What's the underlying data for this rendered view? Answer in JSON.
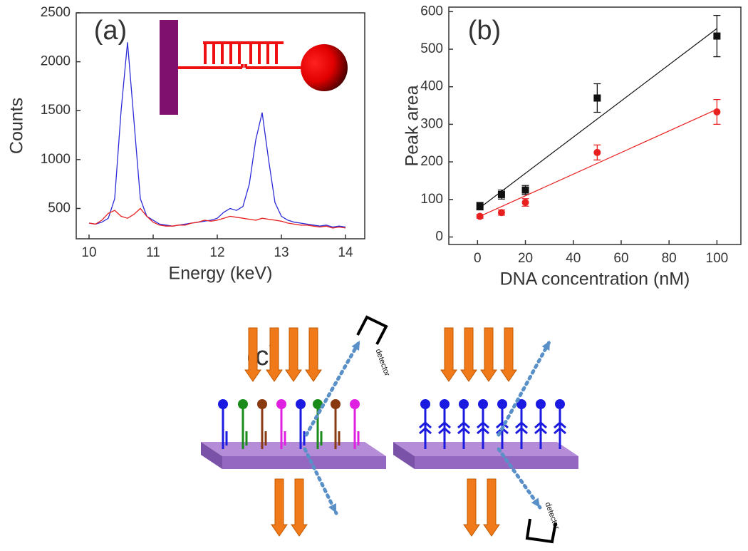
{
  "chart_data": [
    {
      "type": "line",
      "label": "(a)",
      "xlabel": "Energy (keV)",
      "ylabel": "Counts",
      "xlim": [
        9.8,
        14.3
      ],
      "xticks": [
        10,
        11,
        12,
        13,
        14
      ],
      "ylim": [
        190,
        2500
      ],
      "yticks": [
        500,
        1000,
        1500,
        2000,
        2500
      ],
      "x": [
        10.0,
        10.1,
        10.2,
        10.3,
        10.4,
        10.5,
        10.6,
        10.7,
        10.8,
        10.9,
        11.0,
        11.1,
        11.2,
        11.3,
        11.4,
        11.5,
        11.6,
        11.7,
        11.8,
        11.9,
        12.0,
        12.1,
        12.2,
        12.3,
        12.4,
        12.5,
        12.6,
        12.7,
        12.8,
        12.9,
        13.0,
        13.1,
        13.2,
        13.3,
        13.4,
        13.5,
        13.6,
        13.7,
        13.8,
        13.9,
        14.0
      ],
      "series": [
        {
          "color": "#2b2bd8",
          "values": [
            350,
            340,
            360,
            400,
            600,
            1500,
            2200,
            1400,
            600,
            420,
            380,
            340,
            330,
            320,
            330,
            340,
            350,
            360,
            370,
            380,
            400,
            460,
            500,
            480,
            520,
            750,
            1200,
            1480,
            1000,
            560,
            420,
            380,
            360,
            350,
            340,
            330,
            320,
            330,
            310,
            320,
            310
          ]
        },
        {
          "color": "#e82020",
          "values": [
            350,
            340,
            380,
            450,
            480,
            420,
            400,
            440,
            500,
            420,
            360,
            330,
            320,
            320,
            330,
            330,
            350,
            360,
            380,
            370,
            380,
            400,
            420,
            410,
            400,
            390,
            380,
            400,
            390,
            380,
            370,
            350,
            340,
            330,
            330,
            320,
            310,
            320,
            300,
            310,
            300
          ]
        }
      ]
    },
    {
      "type": "scatter",
      "label": "(b)",
      "xlabel": "DNA concentration (nM)",
      "ylabel": "Peak area",
      "xlim": [
        -12,
        110
      ],
      "xticks": [
        0,
        20,
        40,
        60,
        80,
        100
      ],
      "ylim": [
        -20,
        612
      ],
      "yticks": [
        0,
        100,
        200,
        300,
        400,
        500,
        600
      ],
      "x": [
        1,
        10,
        20,
        50,
        100
      ],
      "fit_x": [
        1,
        100
      ],
      "series": [
        {
          "color": "#111111",
          "values": [
            82,
            113,
            125,
            370,
            535
          ],
          "errors": [
            10,
            12,
            12,
            38,
            55
          ],
          "fit": [
            78,
            555
          ]
        },
        {
          "color": "#e82020",
          "values": [
            55,
            65,
            92,
            225,
            333
          ],
          "errors": [
            5,
            7,
            10,
            20,
            33
          ],
          "fit": [
            55,
            340
          ]
        }
      ]
    }
  ],
  "diagram": {
    "label": "(c)",
    "detector_labels": [
      "detector",
      "detector"
    ]
  }
}
